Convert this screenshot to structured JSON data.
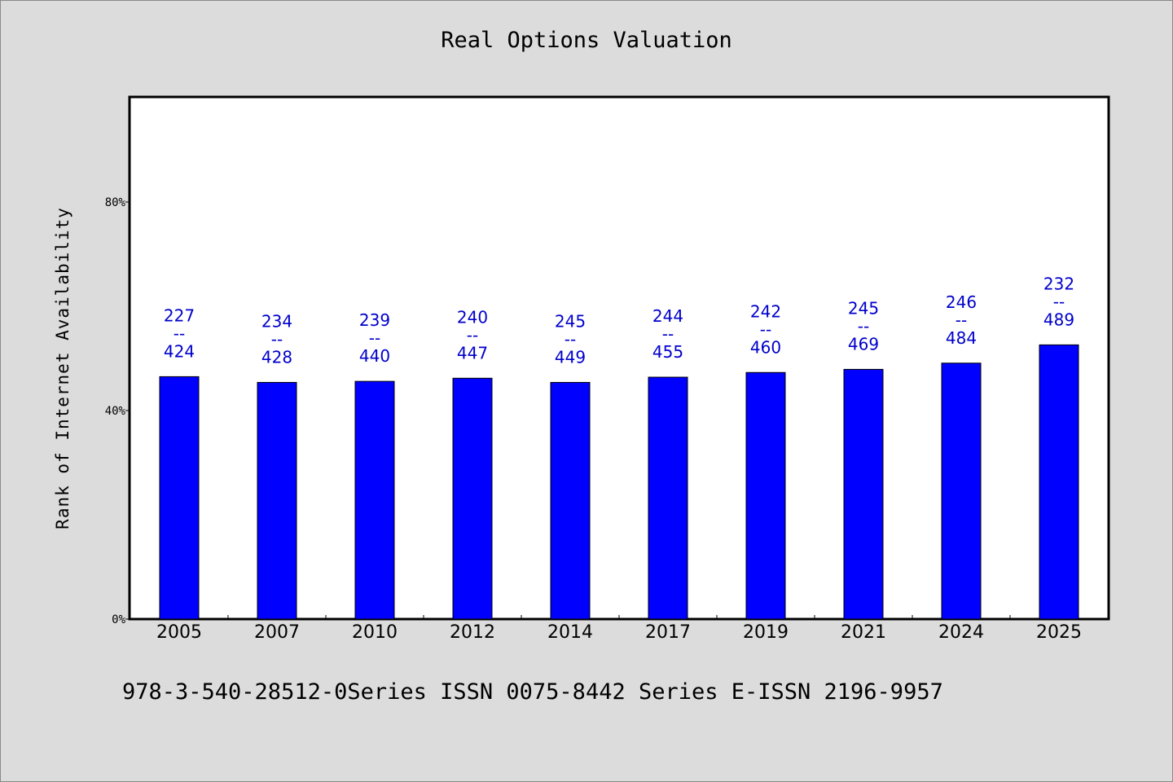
{
  "chart_data": {
    "type": "bar",
    "title": "Real Options Valuation",
    "ylabel": "Rank of Internet Availability",
    "xlabel": "",
    "ylim": [
      0,
      100
    ],
    "yticks": [
      0,
      40,
      80
    ],
    "ytick_labels": [
      "0%",
      "40%",
      "80%"
    ],
    "categories": [
      "2005",
      "2007",
      "2010",
      "2012",
      "2014",
      "2017",
      "2019",
      "2021",
      "2024",
      "2025"
    ],
    "values": [
      46.5,
      45.4,
      45.6,
      46.2,
      45.4,
      46.4,
      47.3,
      47.9,
      49.1,
      52.6
    ],
    "bar_labels": [
      [
        "227",
        "--",
        "424"
      ],
      [
        "234",
        "--",
        "428"
      ],
      [
        "239",
        "--",
        "440"
      ],
      [
        "240",
        "--",
        "447"
      ],
      [
        "245",
        "--",
        "449"
      ],
      [
        "244",
        "--",
        "455"
      ],
      [
        "242",
        "--",
        "460"
      ],
      [
        "245",
        "--",
        "469"
      ],
      [
        "246",
        "--",
        "484"
      ],
      [
        "232",
        "--",
        "489"
      ]
    ],
    "bar_color": "#0000ff",
    "label_color": "#0000cc",
    "grid": false,
    "legend": "none"
  },
  "footer": "978-3-540-28512-0Series ISSN 0075-8442 Series E-ISSN 2196-9957"
}
